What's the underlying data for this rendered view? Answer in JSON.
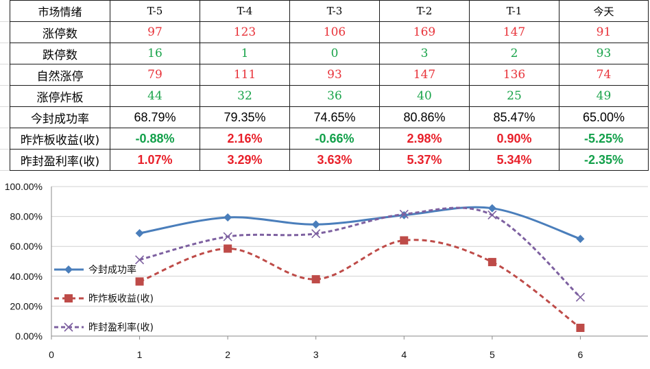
{
  "table": {
    "headers": [
      "市场情绪",
      "T-5",
      "T-4",
      "T-3",
      "T-2",
      "T-1",
      "今天"
    ],
    "rows": [
      {
        "label": "涨停数",
        "style": "red",
        "values": [
          "97",
          "123",
          "106",
          "169",
          "147",
          "91"
        ]
      },
      {
        "label": "跌停数",
        "style": "green",
        "values": [
          "16",
          "1",
          "0",
          "3",
          "2",
          "93"
        ]
      },
      {
        "label": "自然涨停",
        "style": "red",
        "values": [
          "79",
          "111",
          "93",
          "147",
          "136",
          "74"
        ]
      },
      {
        "label": "涨停炸板",
        "style": "green",
        "values": [
          "44",
          "32",
          "36",
          "40",
          "25",
          "49"
        ]
      },
      {
        "label": "今封成功率",
        "style": "black",
        "values": [
          "68.79%",
          "79.35%",
          "74.65%",
          "80.86%",
          "85.47%",
          "65.00%"
        ]
      },
      {
        "label": "昨炸板收益(收)",
        "style": "mixed",
        "values": [
          "-0.88%",
          "2.16%",
          "-0.66%",
          "2.98%",
          "0.90%",
          "-5.25%"
        ],
        "colors": [
          "green",
          "red",
          "green",
          "red",
          "red",
          "green"
        ]
      },
      {
        "label": "昨封盈利率(收)",
        "style": "mixed",
        "values": [
          "1.07%",
          "3.29%",
          "3.63%",
          "5.37%",
          "5.34%",
          "-2.35%"
        ],
        "colors": [
          "red",
          "red",
          "red",
          "red",
          "red",
          "green"
        ]
      }
    ]
  },
  "chart_data": {
    "type": "line",
    "smooth": true,
    "x": [
      1,
      2,
      3,
      4,
      5,
      6
    ],
    "xlim": [
      0,
      6.65
    ],
    "xticks": [
      "0",
      "1",
      "2",
      "3",
      "4",
      "5",
      "6"
    ],
    "ylim": [
      0,
      100
    ],
    "yticks": [
      "0.00%",
      "20.00%",
      "40.00%",
      "60.00%",
      "80.00%",
      "100.00%"
    ],
    "grid": true,
    "legend_position": "left",
    "series": [
      {
        "name": "今封成功率",
        "values": [
          68.79,
          79.35,
          74.65,
          80.86,
          85.47,
          65.0
        ],
        "color": "#4a7ebb",
        "dash": "none",
        "marker": "diamond"
      },
      {
        "name": "昨炸板收益(收)",
        "values": [
          36.5,
          58.5,
          38.0,
          64.0,
          49.5,
          5.5
        ],
        "color": "#be4b48",
        "dash": "7,5",
        "marker": "square"
      },
      {
        "name": "昨封盈利率(收)",
        "values": [
          51.0,
          66.5,
          68.5,
          81.5,
          81.0,
          26.0
        ],
        "color": "#7d60a0",
        "dash": "6,4",
        "marker": "x"
      }
    ]
  }
}
